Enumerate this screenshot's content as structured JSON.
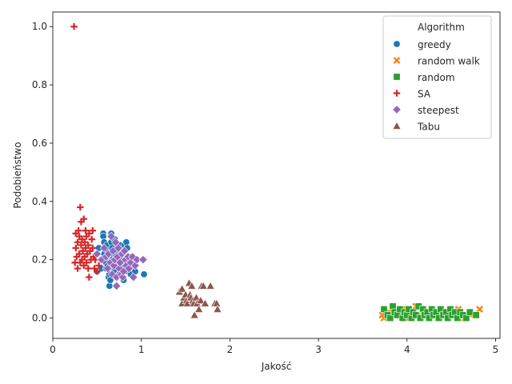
{
  "chart_data": {
    "type": "scatter",
    "xlabel": "Jakość",
    "ylabel": "Podobieństwo",
    "xlim": [
      0,
      5.05
    ],
    "ylim": [
      -0.07,
      1.05
    ],
    "xticks": [
      "0",
      "1",
      "2",
      "3",
      "4",
      "5"
    ],
    "yticks": [
      "0.0",
      "0.2",
      "0.4",
      "0.6",
      "0.8",
      "1.0"
    ],
    "grid": false,
    "legend_position": "top-right",
    "legend_title": "Algorithm",
    "series": [
      {
        "name": "greedy",
        "marker": "circle",
        "color": "#1f77b4",
        "points": [
          [
            0.5,
            0.16
          ],
          [
            0.52,
            0.24
          ],
          [
            0.55,
            0.17
          ],
          [
            0.57,
            0.29
          ],
          [
            0.57,
            0.28
          ],
          [
            0.58,
            0.26
          ],
          [
            0.58,
            0.22
          ],
          [
            0.59,
            0.2
          ],
          [
            0.6,
            0.17
          ],
          [
            0.6,
            0.19
          ],
          [
            0.61,
            0.25
          ],
          [
            0.62,
            0.21
          ],
          [
            0.62,
            0.18
          ],
          [
            0.63,
            0.23
          ],
          [
            0.63,
            0.14
          ],
          [
            0.64,
            0.15
          ],
          [
            0.64,
            0.11
          ],
          [
            0.65,
            0.13
          ],
          [
            0.66,
            0.29
          ],
          [
            0.66,
            0.26
          ],
          [
            0.67,
            0.24
          ],
          [
            0.67,
            0.2
          ],
          [
            0.68,
            0.22
          ],
          [
            0.68,
            0.17
          ],
          [
            0.69,
            0.16
          ],
          [
            0.7,
            0.27
          ],
          [
            0.7,
            0.19
          ],
          [
            0.71,
            0.21
          ],
          [
            0.72,
            0.14
          ],
          [
            0.73,
            0.23
          ],
          [
            0.74,
            0.18
          ],
          [
            0.75,
            0.15
          ],
          [
            0.76,
            0.25
          ],
          [
            0.77,
            0.2
          ],
          [
            0.78,
            0.17
          ],
          [
            0.79,
            0.22
          ],
          [
            0.8,
            0.13
          ],
          [
            0.81,
            0.25
          ],
          [
            0.82,
            0.19
          ],
          [
            0.83,
            0.26
          ],
          [
            0.84,
            0.24
          ],
          [
            0.85,
            0.16
          ],
          [
            0.86,
            0.21
          ],
          [
            0.88,
            0.15
          ],
          [
            0.9,
            0.18
          ],
          [
            0.93,
            0.16
          ],
          [
            1.03,
            0.15
          ]
        ]
      },
      {
        "name": "random walk",
        "marker": "x",
        "color": "#ff7f0e",
        "points": [
          [
            3.72,
            0.01
          ],
          [
            3.74,
            0.0
          ],
          [
            3.8,
            0.02
          ],
          [
            3.88,
            0.01
          ],
          [
            3.95,
            0.03
          ],
          [
            4.02,
            0.0
          ],
          [
            4.1,
            0.04
          ],
          [
            4.15,
            0.01
          ],
          [
            4.22,
            0.02
          ],
          [
            4.28,
            0.03
          ],
          [
            4.35,
            0.0
          ],
          [
            4.42,
            0.02
          ],
          [
            4.5,
            0.01
          ],
          [
            4.58,
            0.03
          ],
          [
            4.65,
            0.0
          ],
          [
            4.72,
            0.01
          ],
          [
            4.82,
            0.03
          ]
        ]
      },
      {
        "name": "random",
        "marker": "square",
        "color": "#2ca02c",
        "points": [
          [
            3.74,
            0.03
          ],
          [
            3.78,
            0.01
          ],
          [
            3.81,
            0.0
          ],
          [
            3.84,
            0.04
          ],
          [
            3.86,
            0.02
          ],
          [
            3.89,
            0.01
          ],
          [
            3.92,
            0.03
          ],
          [
            3.95,
            0.0
          ],
          [
            3.97,
            0.02
          ],
          [
            4.0,
            0.01
          ],
          [
            4.02,
            0.03
          ],
          [
            4.05,
            0.0
          ],
          [
            4.07,
            0.02
          ],
          [
            4.1,
            0.01
          ],
          [
            4.13,
            0.04
          ],
          [
            4.15,
            0.0
          ],
          [
            4.18,
            0.03
          ],
          [
            4.2,
            0.01
          ],
          [
            4.23,
            0.02
          ],
          [
            4.25,
            0.0
          ],
          [
            4.28,
            0.03
          ],
          [
            4.3,
            0.01
          ],
          [
            4.33,
            0.02
          ],
          [
            4.36,
            0.0
          ],
          [
            4.38,
            0.03
          ],
          [
            4.41,
            0.01
          ],
          [
            4.44,
            0.02
          ],
          [
            4.46,
            0.0
          ],
          [
            4.49,
            0.03
          ],
          [
            4.51,
            0.01
          ],
          [
            4.54,
            0.02
          ],
          [
            4.57,
            0.0
          ],
          [
            4.6,
            0.02
          ],
          [
            4.63,
            0.01
          ],
          [
            4.67,
            0.0
          ],
          [
            4.71,
            0.02
          ],
          [
            4.78,
            0.01
          ]
        ]
      },
      {
        "name": "SA",
        "marker": "plus",
        "color": "#d62728",
        "points": [
          [
            0.24,
            1.0
          ],
          [
            0.25,
            0.19
          ],
          [
            0.26,
            0.24
          ],
          [
            0.26,
            0.29
          ],
          [
            0.27,
            0.21
          ],
          [
            0.28,
            0.26
          ],
          [
            0.28,
            0.17
          ],
          [
            0.29,
            0.3
          ],
          [
            0.3,
            0.22
          ],
          [
            0.3,
            0.28
          ],
          [
            0.31,
            0.38
          ],
          [
            0.31,
            0.19
          ],
          [
            0.32,
            0.25
          ],
          [
            0.32,
            0.33
          ],
          [
            0.33,
            0.2
          ],
          [
            0.33,
            0.27
          ],
          [
            0.34,
            0.23
          ],
          [
            0.35,
            0.34
          ],
          [
            0.35,
            0.18
          ],
          [
            0.36,
            0.26
          ],
          [
            0.36,
            0.21
          ],
          [
            0.37,
            0.3
          ],
          [
            0.37,
            0.24
          ],
          [
            0.38,
            0.19
          ],
          [
            0.38,
            0.28
          ],
          [
            0.39,
            0.22
          ],
          [
            0.4,
            0.25
          ],
          [
            0.4,
            0.17
          ],
          [
            0.41,
            0.29
          ],
          [
            0.41,
            0.14
          ],
          [
            0.42,
            0.23
          ],
          [
            0.43,
            0.2
          ],
          [
            0.44,
            0.27
          ],
          [
            0.45,
            0.24
          ],
          [
            0.45,
            0.3
          ],
          [
            0.46,
            0.21
          ],
          [
            0.47,
            0.17
          ],
          [
            0.48,
            0.2
          ],
          [
            0.5,
            0.16
          ],
          [
            0.52,
            0.18
          ]
        ]
      },
      {
        "name": "steepest",
        "marker": "diamond",
        "color": "#9467bd",
        "points": [
          [
            0.5,
            0.22
          ],
          [
            0.55,
            0.2
          ],
          [
            0.58,
            0.24
          ],
          [
            0.6,
            0.21
          ],
          [
            0.62,
            0.17
          ],
          [
            0.63,
            0.22
          ],
          [
            0.65,
            0.19
          ],
          [
            0.66,
            0.28
          ],
          [
            0.67,
            0.15
          ],
          [
            0.68,
            0.23
          ],
          [
            0.69,
            0.18
          ],
          [
            0.7,
            0.2
          ],
          [
            0.71,
            0.26
          ],
          [
            0.72,
            0.11
          ],
          [
            0.72,
            0.14
          ],
          [
            0.73,
            0.21
          ],
          [
            0.74,
            0.24
          ],
          [
            0.75,
            0.17
          ],
          [
            0.76,
            0.19
          ],
          [
            0.77,
            0.15
          ],
          [
            0.78,
            0.22
          ],
          [
            0.79,
            0.14
          ],
          [
            0.8,
            0.16
          ],
          [
            0.81,
            0.23
          ],
          [
            0.82,
            0.2
          ],
          [
            0.83,
            0.18
          ],
          [
            0.85,
            0.21
          ],
          [
            0.86,
            0.17
          ],
          [
            0.88,
            0.19
          ],
          [
            0.9,
            0.21
          ],
          [
            0.91,
            0.14
          ],
          [
            0.93,
            0.18
          ],
          [
            0.95,
            0.2
          ],
          [
            1.02,
            0.2
          ]
        ]
      },
      {
        "name": "Tabu",
        "marker": "triangle",
        "color": "#8c564b",
        "points": [
          [
            1.43,
            0.09
          ],
          [
            1.46,
            0.1
          ],
          [
            1.46,
            0.05
          ],
          [
            1.48,
            0.07
          ],
          [
            1.5,
            0.08
          ],
          [
            1.51,
            0.06
          ],
          [
            1.52,
            0.05
          ],
          [
            1.54,
            0.12
          ],
          [
            1.55,
            0.08
          ],
          [
            1.56,
            0.07
          ],
          [
            1.57,
            0.11
          ],
          [
            1.58,
            0.06
          ],
          [
            1.59,
            0.05
          ],
          [
            1.6,
            0.01
          ],
          [
            1.62,
            0.07
          ],
          [
            1.63,
            0.05
          ],
          [
            1.65,
            0.03
          ],
          [
            1.67,
            0.06
          ],
          [
            1.68,
            0.11
          ],
          [
            1.7,
            0.11
          ],
          [
            1.72,
            0.05
          ],
          [
            1.78,
            0.11
          ],
          [
            1.83,
            0.05
          ],
          [
            1.85,
            0.05
          ],
          [
            1.86,
            0.03
          ]
        ]
      }
    ]
  }
}
